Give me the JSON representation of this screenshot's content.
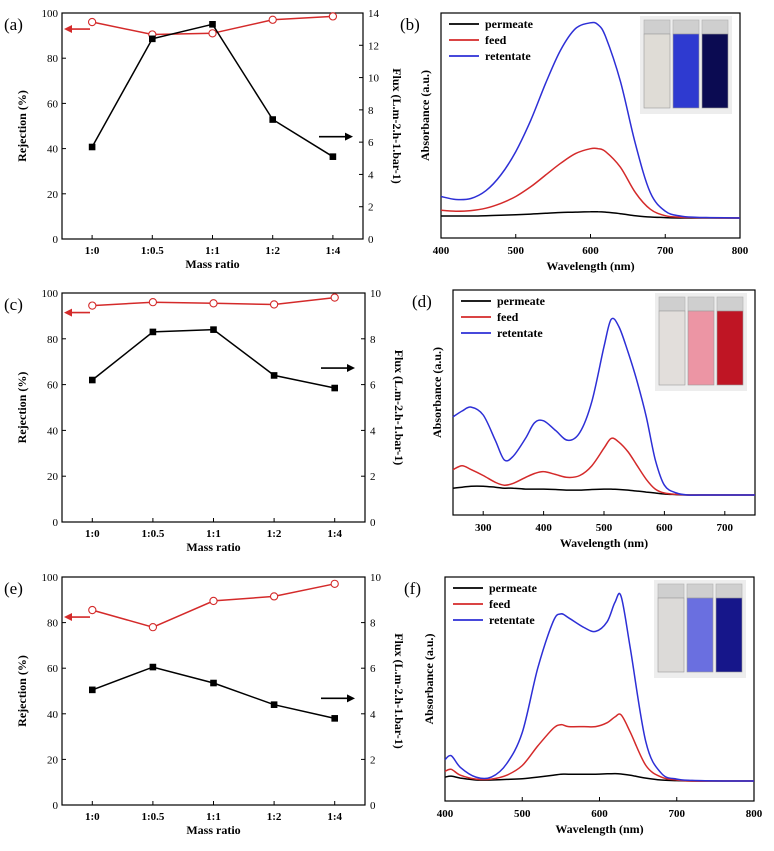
{
  "chart_data": [
    {
      "panel": "(a)",
      "type": "line",
      "xlabel": "Mass ratio",
      "ylabel_left": "Rejection (%)",
      "ylabel_right": "Flux (L.m-2.h-1.bar-1)",
      "ylim_left": [
        0,
        100
      ],
      "ylim_right": [
        0,
        14
      ],
      "yticks_left": [
        0,
        20,
        40,
        60,
        80,
        100
      ],
      "yticks_right": [
        0,
        2,
        4,
        6,
        8,
        10,
        12,
        14
      ],
      "categories": [
        "1:0",
        "1:0.5",
        "1:1",
        "1:2",
        "1:4"
      ],
      "series": [
        {
          "name": "Rejection",
          "axis": "left",
          "color": "#d42a2a",
          "marker": "open-circle",
          "values": [
            96,
            90.5,
            91,
            97,
            98.5
          ]
        },
        {
          "name": "Flux",
          "axis": "right",
          "color": "#000000",
          "marker": "filled-square",
          "values": [
            5.7,
            12.4,
            13.3,
            7.4,
            5.1
          ]
        }
      ]
    },
    {
      "panel": "(b)",
      "type": "line",
      "xlabel": "Wavelength (nm)",
      "ylabel": "Absorbance (a.u.)",
      "xlim": [
        400,
        800
      ],
      "xticks": [
        400,
        500,
        600,
        700,
        800
      ],
      "ylim": [
        0,
        1.05
      ],
      "x": [
        400,
        420,
        440,
        460,
        480,
        500,
        520,
        540,
        560,
        580,
        600,
        610,
        620,
        640,
        660,
        680,
        700,
        720,
        740,
        760,
        780,
        800
      ],
      "series": [
        {
          "name": "permeate",
          "color": "#000000",
          "values": [
            0.01,
            0.01,
            0.01,
            0.012,
            0.014,
            0.017,
            0.02,
            0.024,
            0.028,
            0.03,
            0.032,
            0.032,
            0.03,
            0.022,
            0.012,
            0.005,
            0.002,
            0,
            0,
            0,
            0,
            0
          ]
        },
        {
          "name": "feed",
          "color": "#d42a2a",
          "values": [
            0.04,
            0.035,
            0.038,
            0.05,
            0.075,
            0.11,
            0.16,
            0.22,
            0.28,
            0.33,
            0.355,
            0.355,
            0.34,
            0.26,
            0.13,
            0.045,
            0.012,
            0.004,
            0.002,
            0.001,
            0,
            0
          ]
        },
        {
          "name": "retentate",
          "color": "#2d2fd6",
          "values": [
            0.11,
            0.095,
            0.1,
            0.14,
            0.22,
            0.34,
            0.5,
            0.69,
            0.86,
            0.97,
            1.0,
            0.99,
            0.93,
            0.7,
            0.38,
            0.13,
            0.035,
            0.01,
            0.004,
            0.002,
            0.001,
            0
          ]
        }
      ],
      "inset_vials": [
        "#dfdcd6",
        "#2e3ad0",
        "#0b0b52"
      ]
    },
    {
      "panel": "(c)",
      "type": "line",
      "xlabel": "Mass ratio",
      "ylabel_left": "Rejection (%)",
      "ylabel_right": "Flux (L.m-2.h-1.bar-1)",
      "ylim_left": [
        0,
        100
      ],
      "ylim_right": [
        0,
        10
      ],
      "yticks_left": [
        0,
        20,
        40,
        60,
        80,
        100
      ],
      "yticks_right": [
        0,
        2,
        4,
        6,
        8,
        10
      ],
      "categories": [
        "1:0",
        "1:0.5",
        "1:1",
        "1:2",
        "1:4"
      ],
      "series": [
        {
          "name": "Rejection",
          "axis": "left",
          "color": "#d42a2a",
          "marker": "open-circle",
          "values": [
            94.5,
            96,
            95.5,
            95,
            98
          ]
        },
        {
          "name": "Flux",
          "axis": "right",
          "color": "#000000",
          "marker": "filled-square",
          "values": [
            6.2,
            8.3,
            8.4,
            6.4,
            5.85
          ]
        }
      ]
    },
    {
      "panel": "(d)",
      "type": "line",
      "xlabel": "Wavelength (nm)",
      "ylabel": "Absorbance (a.u.)",
      "xlim": [
        250,
        750
      ],
      "xticks": [
        300,
        400,
        500,
        600,
        700
      ],
      "ylim": [
        0,
        1.05
      ],
      "x": [
        250,
        265,
        280,
        300,
        320,
        335,
        350,
        370,
        385,
        400,
        420,
        440,
        460,
        480,
        500,
        512,
        525,
        540,
        555,
        570,
        585,
        600,
        620,
        640,
        660,
        700,
        750
      ],
      "series": [
        {
          "name": "permeate",
          "color": "#000000",
          "values": [
            0.035,
            0.04,
            0.045,
            0.045,
            0.04,
            0.035,
            0.035,
            0.03,
            0.03,
            0.03,
            0.028,
            0.025,
            0.025,
            0.028,
            0.03,
            0.03,
            0.028,
            0.025,
            0.02,
            0.015,
            0.01,
            0.005,
            0.002,
            0,
            0,
            0,
            0
          ]
        },
        {
          "name": "feed",
          "color": "#d42a2a",
          "values": [
            0.13,
            0.15,
            0.13,
            0.1,
            0.065,
            0.05,
            0.06,
            0.09,
            0.11,
            0.12,
            0.105,
            0.09,
            0.1,
            0.15,
            0.24,
            0.29,
            0.27,
            0.22,
            0.15,
            0.08,
            0.03,
            0.01,
            0.003,
            0,
            0,
            0,
            0
          ]
        },
        {
          "name": "retentate",
          "color": "#2d2fd6",
          "values": [
            0.4,
            0.43,
            0.45,
            0.41,
            0.28,
            0.18,
            0.2,
            0.29,
            0.37,
            0.38,
            0.33,
            0.28,
            0.32,
            0.48,
            0.76,
            0.9,
            0.86,
            0.73,
            0.58,
            0.4,
            0.18,
            0.05,
            0.01,
            0,
            0,
            0,
            0
          ]
        }
      ],
      "inset_vials": [
        "#e2dedb",
        "#ec95a4",
        "#bf1524"
      ]
    },
    {
      "panel": "(e)",
      "type": "line",
      "xlabel": "Mass ratio",
      "ylabel_left": "Rejection (%)",
      "ylabel_right": "Flux (L.m-2.h-1.bar-1)",
      "ylim_left": [
        0,
        100
      ],
      "ylim_right": [
        0,
        10
      ],
      "yticks_left": [
        0,
        20,
        40,
        60,
        80,
        100
      ],
      "yticks_right": [
        0,
        2,
        4,
        6,
        8,
        10
      ],
      "categories": [
        "1:0",
        "1:0.5",
        "1:1",
        "1:2",
        "1:4"
      ],
      "series": [
        {
          "name": "Rejection",
          "axis": "left",
          "color": "#d42a2a",
          "marker": "open-circle",
          "values": [
            85.5,
            78,
            89.5,
            91.5,
            97
          ]
        },
        {
          "name": "Flux",
          "axis": "right",
          "color": "#000000",
          "marker": "filled-square",
          "values": [
            5.05,
            6.05,
            5.35,
            4.4,
            3.8
          ]
        }
      ]
    },
    {
      "panel": "(f)",
      "type": "line",
      "xlabel": "Wavelength (nm)",
      "ylabel": "Absorbance (a.u.)",
      "xlim": [
        400,
        800
      ],
      "xticks": [
        400,
        500,
        600,
        700,
        800
      ],
      "ylim": [
        0,
        1.05
      ],
      "x": [
        400,
        408,
        420,
        440,
        460,
        480,
        500,
        520,
        540,
        550,
        560,
        580,
        595,
        610,
        620,
        628,
        640,
        660,
        680,
        700,
        720,
        760,
        800
      ],
      "series": [
        {
          "name": "permeate",
          "color": "#000000",
          "values": [
            0.02,
            0.025,
            0.015,
            0.005,
            0.005,
            0.008,
            0.012,
            0.02,
            0.03,
            0.035,
            0.035,
            0.035,
            0.035,
            0.037,
            0.038,
            0.036,
            0.03,
            0.015,
            0.005,
            0.002,
            0,
            0,
            0
          ]
        },
        {
          "name": "feed",
          "color": "#d42a2a",
          "values": [
            0.05,
            0.06,
            0.03,
            0.01,
            0.01,
            0.03,
            0.08,
            0.18,
            0.27,
            0.29,
            0.28,
            0.28,
            0.28,
            0.3,
            0.33,
            0.34,
            0.25,
            0.08,
            0.02,
            0.005,
            0,
            0,
            0
          ]
        },
        {
          "name": "retentate",
          "color": "#2d2fd6",
          "values": [
            0.11,
            0.13,
            0.07,
            0.02,
            0.02,
            0.09,
            0.25,
            0.58,
            0.82,
            0.86,
            0.84,
            0.79,
            0.77,
            0.82,
            0.92,
            0.95,
            0.68,
            0.2,
            0.04,
            0.01,
            0.003,
            0,
            0
          ]
        }
      ],
      "inset_vials": [
        "#dcdad8",
        "#6a6fe0",
        "#16168a"
      ]
    }
  ]
}
